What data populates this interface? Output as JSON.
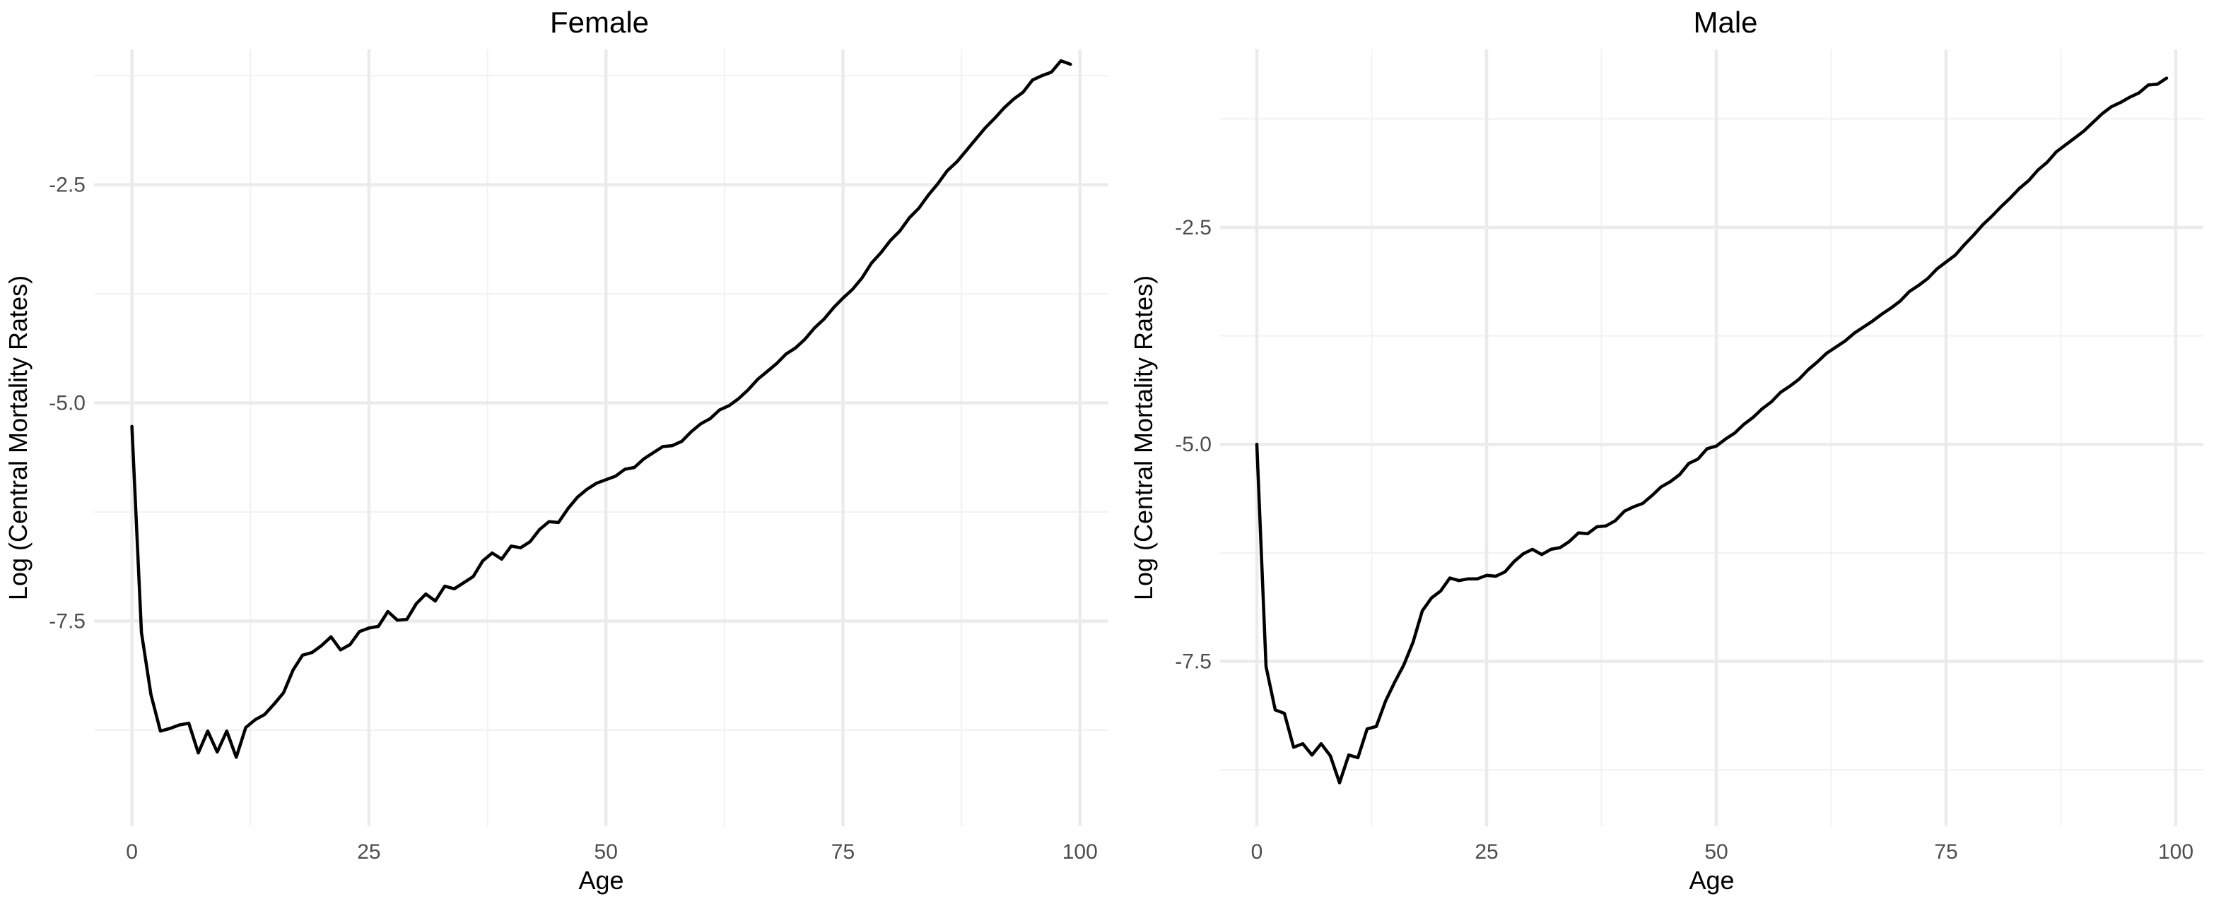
{
  "chart_data": [
    {
      "type": "line",
      "title": "Female",
      "xlabel": "Age",
      "ylabel": "Log (Central Mortality Rates)",
      "xlim": [
        -4,
        103
      ],
      "ylim": [
        -9.85,
        -0.95
      ],
      "x_ticks": [
        0,
        25,
        50,
        75,
        100
      ],
      "y_ticks": [
        -7.5,
        -5.0,
        -2.5
      ],
      "y_tick_labels": [
        "-7.5",
        "-5.0",
        "-2.5"
      ],
      "grid": true,
      "legend": "none",
      "series": [
        {
          "x": [
            0,
            1,
            2,
            3,
            4,
            5,
            6,
            7,
            8,
            9,
            10,
            11,
            12,
            13,
            14,
            15,
            16,
            17,
            18,
            19,
            20,
            21,
            22,
            23,
            24,
            25,
            26,
            27,
            28,
            29,
            30,
            31,
            32,
            33,
            34,
            35,
            36,
            37,
            38,
            39,
            40,
            41,
            42,
            43,
            44,
            45,
            46,
            47,
            48,
            49,
            50,
            51,
            52,
            53,
            54,
            55,
            56,
            57,
            58,
            59,
            60,
            61,
            62,
            63,
            64,
            65,
            66,
            67,
            68,
            69,
            70,
            71,
            72,
            73,
            74,
            75,
            76,
            77,
            78,
            79,
            80,
            81,
            82,
            83,
            84,
            85,
            86,
            87,
            88,
            89,
            90,
            91,
            92,
            93,
            94,
            95,
            96,
            97,
            98,
            99
          ],
          "values": [
            -5.27,
            -7.63,
            -8.34,
            -8.76,
            -8.73,
            -8.69,
            -8.67,
            -9.01,
            -8.76,
            -9.0,
            -8.76,
            -9.06,
            -8.72,
            -8.63,
            -8.57,
            -8.45,
            -8.32,
            -8.06,
            -7.89,
            -7.86,
            -7.78,
            -7.68,
            -7.83,
            -7.77,
            -7.62,
            -7.58,
            -7.56,
            -7.39,
            -7.49,
            -7.48,
            -7.3,
            -7.19,
            -7.27,
            -7.1,
            -7.13,
            -7.06,
            -6.99,
            -6.81,
            -6.72,
            -6.79,
            -6.64,
            -6.66,
            -6.59,
            -6.45,
            -6.36,
            -6.37,
            -6.21,
            -6.08,
            -5.99,
            -5.92,
            -5.88,
            -5.84,
            -5.76,
            -5.74,
            -5.64,
            -5.57,
            -5.5,
            -5.49,
            -5.44,
            -5.33,
            -5.24,
            -5.18,
            -5.08,
            -5.03,
            -4.95,
            -4.85,
            -4.73,
            -4.64,
            -4.55,
            -4.44,
            -4.37,
            -4.27,
            -4.14,
            -4.04,
            -3.91,
            -3.8,
            -3.7,
            -3.57,
            -3.4,
            -3.28,
            -3.14,
            -3.03,
            -2.88,
            -2.77,
            -2.62,
            -2.49,
            -2.34,
            -2.24,
            -2.11,
            -1.98,
            -1.85,
            -1.74,
            -1.62,
            -1.52,
            -1.44,
            -1.3,
            -1.25,
            -1.21,
            -1.08,
            -1.12
          ]
        }
      ]
    },
    {
      "type": "line",
      "title": "Male",
      "xlabel": "Age",
      "ylabel": "Log (Central Mortality Rates)",
      "xlim": [
        -4,
        103
      ],
      "ylim": [
        -9.4,
        -0.45
      ],
      "x_ticks": [
        0,
        25,
        50,
        75,
        100
      ],
      "y_ticks": [
        -7.5,
        -5.0,
        -2.5
      ],
      "y_tick_labels": [
        "-7.5",
        "-5.0",
        "-2.5"
      ],
      "grid": true,
      "legend": "none",
      "series": [
        {
          "x": [
            0,
            1,
            2,
            3,
            4,
            5,
            6,
            7,
            8,
            9,
            10,
            11,
            12,
            13,
            14,
            15,
            16,
            17,
            18,
            19,
            20,
            21,
            22,
            23,
            24,
            25,
            26,
            27,
            28,
            29,
            30,
            31,
            32,
            33,
            34,
            35,
            36,
            37,
            38,
            39,
            40,
            41,
            42,
            43,
            44,
            45,
            46,
            47,
            48,
            49,
            50,
            51,
            52,
            53,
            54,
            55,
            56,
            57,
            58,
            59,
            60,
            61,
            62,
            63,
            64,
            65,
            66,
            67,
            68,
            69,
            70,
            71,
            72,
            73,
            74,
            75,
            76,
            77,
            78,
            79,
            80,
            81,
            82,
            83,
            84,
            85,
            86,
            87,
            88,
            89,
            90,
            91,
            92,
            93,
            94,
            95,
            96,
            97,
            98,
            99
          ],
          "values": [
            -5.0,
            -7.56,
            -8.06,
            -8.1,
            -8.49,
            -8.45,
            -8.58,
            -8.45,
            -8.59,
            -8.9,
            -8.58,
            -8.61,
            -8.28,
            -8.25,
            -7.96,
            -7.74,
            -7.54,
            -7.28,
            -6.92,
            -6.77,
            -6.69,
            -6.54,
            -6.57,
            -6.55,
            -6.55,
            -6.51,
            -6.52,
            -6.47,
            -6.35,
            -6.26,
            -6.21,
            -6.27,
            -6.21,
            -6.19,
            -6.12,
            -6.02,
            -6.03,
            -5.95,
            -5.94,
            -5.88,
            -5.77,
            -5.72,
            -5.68,
            -5.59,
            -5.49,
            -5.43,
            -5.35,
            -5.22,
            -5.17,
            -5.05,
            -5.02,
            -4.94,
            -4.87,
            -4.77,
            -4.69,
            -4.59,
            -4.51,
            -4.4,
            -4.33,
            -4.25,
            -4.14,
            -4.05,
            -3.95,
            -3.88,
            -3.81,
            -3.72,
            -3.65,
            -3.58,
            -3.5,
            -3.43,
            -3.35,
            -3.24,
            -3.17,
            -3.09,
            -2.98,
            -2.9,
            -2.82,
            -2.7,
            -2.59,
            -2.47,
            -2.37,
            -2.26,
            -2.16,
            -2.05,
            -1.96,
            -1.84,
            -1.75,
            -1.63,
            -1.55,
            -1.47,
            -1.39,
            -1.29,
            -1.19,
            -1.11,
            -1.06,
            -1.0,
            -0.95,
            -0.86,
            -0.85,
            -0.78
          ]
        }
      ]
    }
  ]
}
